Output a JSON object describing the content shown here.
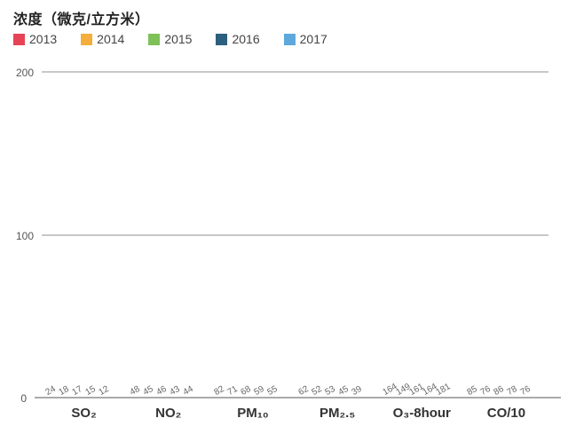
{
  "chart_data": {
    "type": "bar",
    "title": "浓度（微克/立方米）",
    "categories": [
      "SO₂",
      "NO₂",
      "PM₁₀",
      "PM₂.₅",
      "O₃-8hour",
      "CO/10"
    ],
    "series": [
      {
        "name": "2013",
        "color": "#e74356",
        "values": [
          24,
          48,
          82,
          62,
          164,
          85
        ]
      },
      {
        "name": "2014",
        "color": "#f3ae3c",
        "values": [
          18,
          45,
          71,
          52,
          149,
          76
        ]
      },
      {
        "name": "2015",
        "color": "#7ec158",
        "values": [
          17,
          46,
          68,
          53,
          161,
          86
        ]
      },
      {
        "name": "2016",
        "color": "#2d5f7e",
        "values": [
          15,
          43,
          59,
          45,
          164,
          78
        ]
      },
      {
        "name": "2017",
        "color": "#5ea8dc",
        "values": [
          12,
          44,
          55,
          39,
          181,
          76
        ]
      }
    ],
    "ylim": [
      0,
      200
    ],
    "yticks": [
      0,
      100,
      200
    ],
    "grid": true,
    "legend_position": "top",
    "xlabel": "",
    "ylabel": ""
  }
}
